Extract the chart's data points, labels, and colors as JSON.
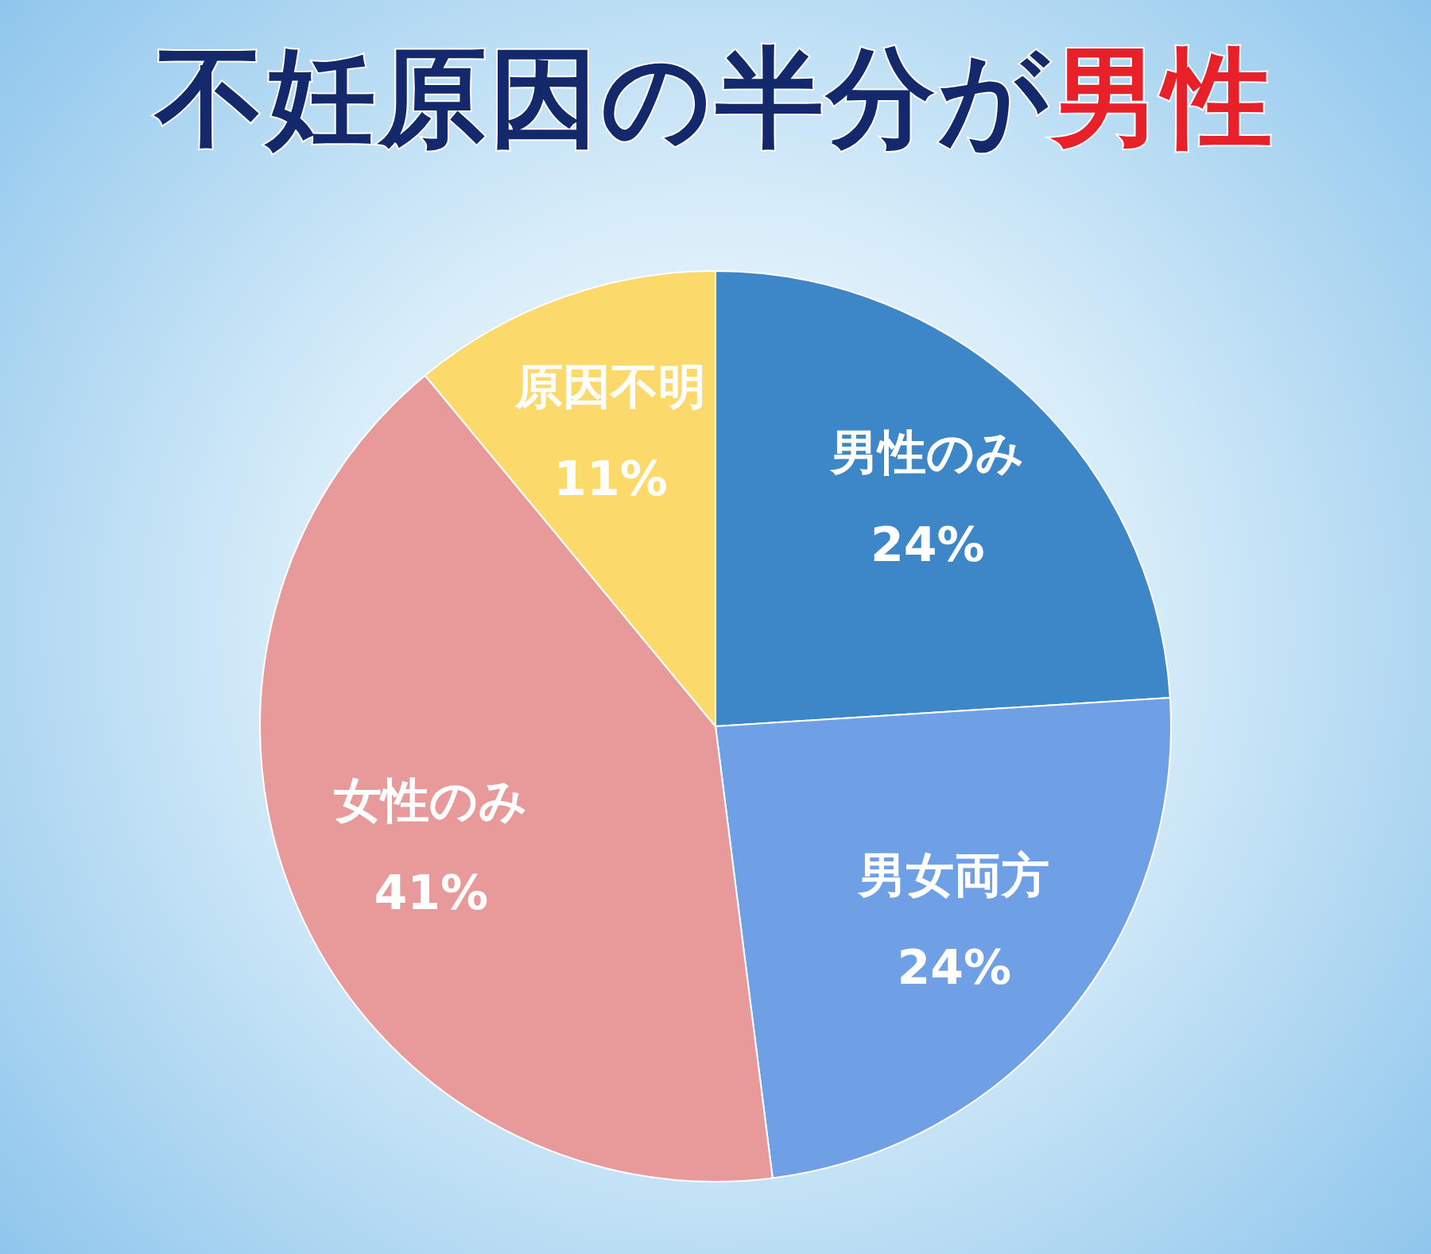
{
  "chart_data": {
    "type": "pie",
    "title": "不妊原因の半分が男性",
    "categories": [
      "男性のみ",
      "男女両方",
      "女性のみ",
      "原因不明"
    ],
    "values": [
      24,
      24,
      41,
      11
    ],
    "value_labels": [
      "24%",
      "24%",
      "41%",
      "11%"
    ],
    "colors": [
      "#3d87c9",
      "#6fa0e6",
      "#e89a9a",
      "#fbd96a"
    ],
    "legend": false
  }
}
